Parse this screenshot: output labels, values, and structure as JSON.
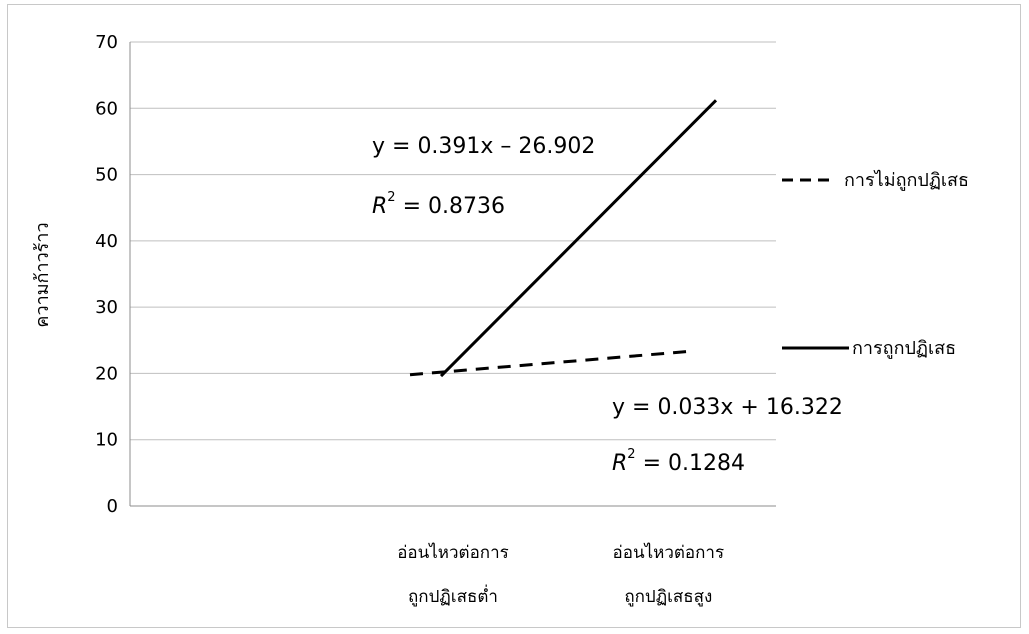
{
  "chart_data": {
    "type": "line",
    "ylabel": "ความก้าวร้าว",
    "ylim": [
      0,
      70
    ],
    "yticks": [
      0,
      10,
      20,
      30,
      40,
      50,
      60,
      70
    ],
    "grid": true,
    "categories": [
      [
        "อ่อนไหวต่อการ",
        "ถูกปฏิเสธต่ำ"
      ],
      [
        "อ่อนไหวต่อการ",
        "ถูกปฏิเสธสูง"
      ]
    ],
    "series": [
      {
        "name": "การไม่ถูกปฏิเสธ",
        "style": "dashed",
        "color": "#000000",
        "values": [
          19.8,
          23.4
        ],
        "equation": "y = 0.033x + 16.322",
        "r2_label": "R",
        "r2_value": " = 0.1284"
      },
      {
        "name": "การถูกปฏิเสธ",
        "style": "solid",
        "color": "#000000",
        "values": [
          19.6,
          61.2
        ],
        "equation": "y =  0.391x – 26.902",
        "r2_label": "R",
        "r2_value": " = 0.8736"
      }
    ],
    "legend_position": "right"
  }
}
